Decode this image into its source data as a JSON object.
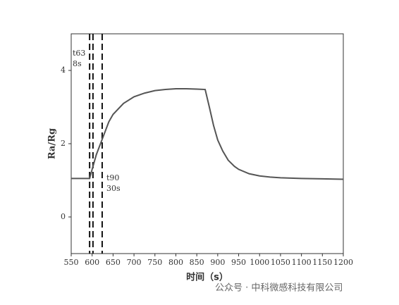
{
  "chart_data": {
    "type": "line",
    "xlabel": "时间（s）",
    "ylabel": "Ra/Rg",
    "x": [
      550,
      575,
      594,
      600,
      610,
      625,
      640,
      650,
      675,
      700,
      725,
      750,
      775,
      800,
      825,
      850,
      870,
      880,
      890,
      900,
      912,
      925,
      940,
      950,
      975,
      1000,
      1025,
      1050,
      1100,
      1150,
      1200
    ],
    "series": [
      {
        "name": "Ra/Rg",
        "color": "#555555",
        "values": [
          1.05,
          1.05,
          1.05,
          1.3,
          1.7,
          2.15,
          2.6,
          2.8,
          3.1,
          3.28,
          3.38,
          3.45,
          3.48,
          3.5,
          3.5,
          3.49,
          3.48,
          3.0,
          2.5,
          2.1,
          1.8,
          1.55,
          1.38,
          1.3,
          1.18,
          1.12,
          1.09,
          1.07,
          1.05,
          1.04,
          1.03
        ]
      }
    ],
    "vlines": [
      594,
      602,
      624
    ],
    "annotations": [
      "t63",
      "8s",
      "t90",
      "30s"
    ],
    "watermark": "公众号 · 中科微感科技有限公司",
    "xlim": [
      550,
      1200
    ],
    "xticks": [
      550,
      600,
      650,
      700,
      750,
      800,
      850,
      900,
      950,
      1000,
      1050,
      1100,
      1150,
      1200
    ],
    "ylim": [
      -1,
      5
    ],
    "yticks": [
      0,
      2,
      4
    ]
  }
}
